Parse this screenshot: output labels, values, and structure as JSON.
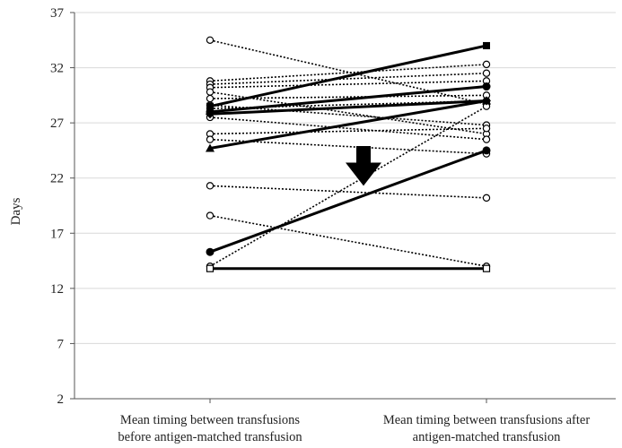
{
  "chart_data": {
    "type": "line",
    "title": "",
    "ylabel": "Days",
    "ylim": [
      2,
      37
    ],
    "yticks": [
      2,
      7,
      12,
      17,
      22,
      27,
      32,
      37
    ],
    "grid": true,
    "categories": [
      "Mean timing between transfusions before antigen-matched transfusion",
      "Mean timing between transfusions after antigen-matched transfusion"
    ],
    "category_lines": [
      [
        "Mean timing between transfusions",
        "before antigen-matched transfusion"
      ],
      [
        "Mean timing between transfusions after",
        "antigen-matched transfusion"
      ]
    ],
    "annotation": "downward-arrow",
    "series": [
      {
        "style": "dotted",
        "marker": "open-circle",
        "values": [
          34.5,
          28.7
        ]
      },
      {
        "style": "dotted",
        "marker": "open-circle",
        "values": [
          30.8,
          32.3
        ]
      },
      {
        "style": "dotted",
        "marker": "open-circle",
        "values": [
          30.5,
          31.5
        ]
      },
      {
        "style": "dotted",
        "marker": "open-circle",
        "values": [
          30.2,
          30.8
        ]
      },
      {
        "style": "dotted",
        "marker": "open-circle",
        "values": [
          29.8,
          26.0
        ]
      },
      {
        "style": "dotted",
        "marker": "open-circle",
        "values": [
          29.2,
          29.5
        ]
      },
      {
        "style": "dotted",
        "marker": "open-circle",
        "values": [
          28.6,
          26.8
        ]
      },
      {
        "style": "dotted",
        "marker": "open-circle",
        "values": [
          28.3,
          29.0
        ]
      },
      {
        "style": "dotted",
        "marker": "open-circle",
        "values": [
          27.5,
          25.5
        ]
      },
      {
        "style": "dotted",
        "marker": "open-circle",
        "values": [
          26.0,
          26.5
        ]
      },
      {
        "style": "dotted",
        "marker": "open-circle",
        "values": [
          25.5,
          24.2
        ]
      },
      {
        "style": "dotted",
        "marker": "open-circle",
        "values": [
          21.3,
          20.2
        ]
      },
      {
        "style": "dotted",
        "marker": "open-circle",
        "values": [
          18.6,
          14.0
        ]
      },
      {
        "style": "dotted",
        "marker": "open-circle",
        "values": [
          14.0,
          28.5
        ]
      },
      {
        "style": "solid",
        "marker": "filled-square",
        "values": [
          28.5,
          34.0
        ]
      },
      {
        "style": "solid",
        "marker": "filled-circle",
        "values": [
          28.0,
          30.3
        ]
      },
      {
        "style": "solid",
        "marker": "filled-diamond",
        "values": [
          27.8,
          29.0
        ]
      },
      {
        "style": "solid",
        "marker": "filled-triangle",
        "values": [
          24.7,
          29.0
        ]
      },
      {
        "style": "solid",
        "marker": "filled-circle",
        "values": [
          15.3,
          24.5
        ]
      },
      {
        "style": "solid",
        "marker": "open-square",
        "values": [
          13.8,
          13.8
        ]
      }
    ]
  }
}
